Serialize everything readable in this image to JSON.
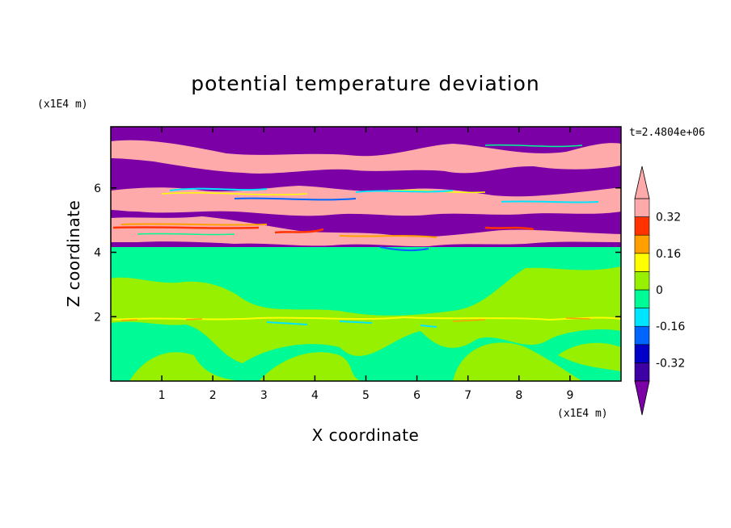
{
  "chart_data": {
    "type": "heatmap",
    "title": "potential temperature deviation",
    "xlabel": "X coordinate",
    "ylabel": "Z coordinate",
    "x_unit": "(x1E4 m)",
    "y_unit": "(x1E4 m)",
    "time_label": "t=2.4804e+06",
    "xlim": [
      0,
      10
    ],
    "ylim": [
      0,
      7.9
    ],
    "x_ticks": [
      1,
      2,
      3,
      4,
      5,
      6,
      7,
      8,
      9
    ],
    "y_ticks": [
      2,
      4,
      6
    ],
    "colorbar": {
      "levels": [
        -0.4,
        -0.32,
        -0.24,
        -0.16,
        -0.08,
        0,
        0.08,
        0.16,
        0.24,
        0.32,
        0.4
      ],
      "colors": [
        "#7b00a6",
        "#3c00a5",
        "#0000c8",
        "#0064ff",
        "#00e5ff",
        "#00fa96",
        "#96f000",
        "#ffff00",
        "#ffa000",
        "#ff3200",
        "#ffaaaa"
      ],
      "tick_labels": [
        "0.32",
        "0.16",
        "0",
        "-0.16",
        "-0.32"
      ],
      "tick_values": [
        0.32,
        0.16,
        0,
        -0.16,
        -0.32
      ]
    },
    "regions": [
      {
        "z_range": [
          0,
          4.2
        ],
        "dominant_values": [
          0,
          0.08
        ],
        "description_levels": "green"
      },
      {
        "z_range": [
          4.2,
          7.9
        ],
        "dominant_values": [
          -0.4,
          0.4
        ],
        "description_levels": "purple-pink"
      }
    ]
  }
}
